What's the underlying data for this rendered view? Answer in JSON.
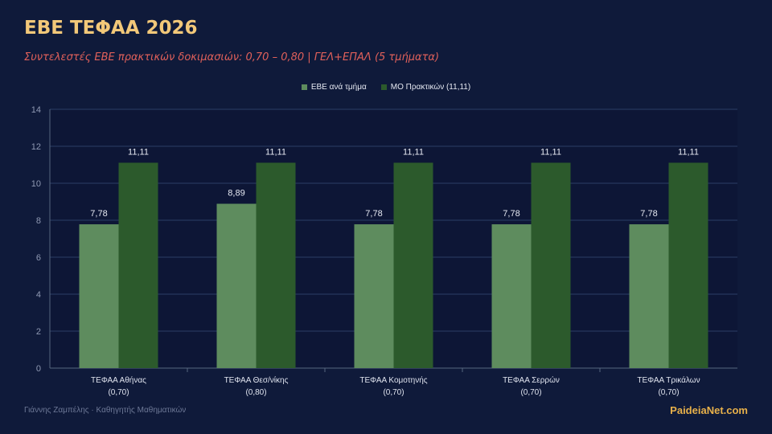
{
  "header": {
    "title": "ΕΒΕ ΤΕΦΑΑ 2026",
    "subtitle": "Συντελεστές ΕΒΕ πρακτικών δοκιμασιών: 0,70 – 0,80 | ΓΕΛ+ΕΠΑΛ (5 τμήματα)"
  },
  "footer": {
    "author": "Γιάννης Ζαμπέλης · Καθηγητής Μαθηματικών",
    "brand": "PaideiaNet.com"
  },
  "colors": {
    "background": "#0f1a3a",
    "plot_background": "#0d1636",
    "series1": "#5e8c5e",
    "series2": "#2c5a2c",
    "title": "#f2c879",
    "subtitle": "#e0605a"
  },
  "chart_data": {
    "type": "bar",
    "categories": [
      [
        "ΤΕΦΑΑ Αθήνας",
        "(0,70)"
      ],
      [
        "ΤΕΦΑΑ Θεσ/νίκης",
        "(0,80)"
      ],
      [
        "ΤΕΦΑΑ Κομοτηνής",
        "(0,70)"
      ],
      [
        "ΤΕΦΑΑ Σερρών",
        "(0,70)"
      ],
      [
        "ΤΕΦΑΑ Τρικάλων",
        "(0,70)"
      ]
    ],
    "series": [
      {
        "name": "ΕΒΕ ανά τμήμα",
        "values": [
          7.78,
          8.89,
          7.78,
          7.78,
          7.78
        ],
        "labels": [
          "7,78",
          "8,89",
          "7,78",
          "7,78",
          "7,78"
        ],
        "color": "#5e8c5e"
      },
      {
        "name": "ΜΟ Πρακτικών (11,11)",
        "values": [
          11.11,
          11.11,
          11.11,
          11.11,
          11.11
        ],
        "labels": [
          "11,11",
          "11,11",
          "11,11",
          "11,11",
          "11,11"
        ],
        "color": "#2c5a2c"
      }
    ],
    "ylim": [
      0,
      14
    ],
    "yticks": [
      "0",
      "2",
      "4",
      "6",
      "8",
      "10",
      "12",
      "14"
    ],
    "grid": true,
    "legend": "top-center"
  }
}
